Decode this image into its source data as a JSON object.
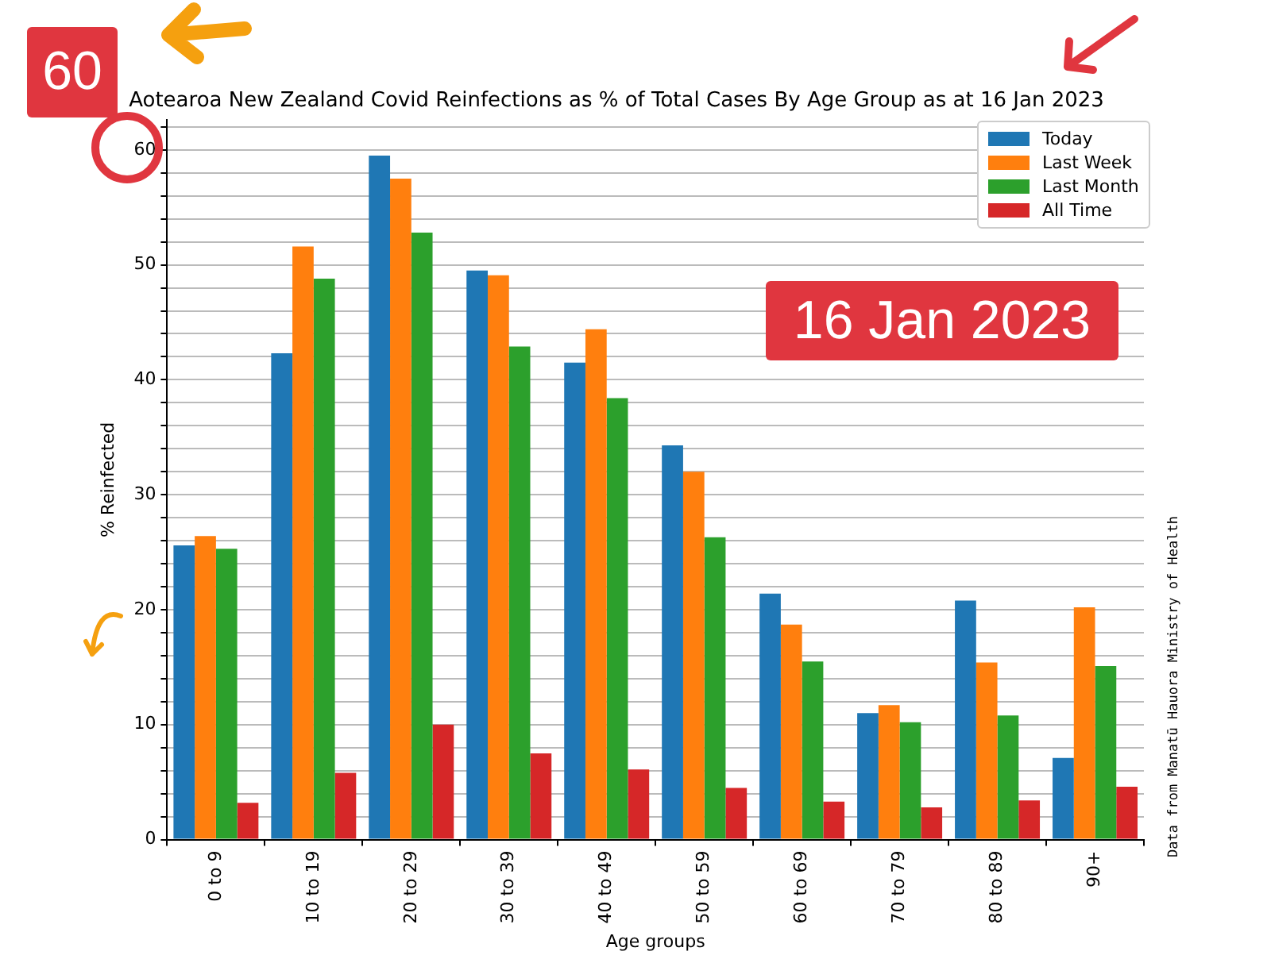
{
  "chart_data": {
    "type": "bar",
    "title": "Aotearoa New Zealand Covid Reinfections as % of Total Cases By Age Group as at 16 Jan 2023",
    "xlabel": "Age groups",
    "ylabel": "% Reinfected",
    "categories": [
      "0 to 9",
      "10 to 19",
      "20 to 29",
      "30 to 39",
      "40 to 49",
      "50 to 59",
      "60 to 69",
      "70 to 79",
      "80 to 89",
      "90+"
    ],
    "series": [
      {
        "name": "Today",
        "color": "#1f77b4",
        "values": [
          25.6,
          42.3,
          59.5,
          49.5,
          41.5,
          34.3,
          21.4,
          11.0,
          20.8,
          7.1
        ]
      },
      {
        "name": "Last Week",
        "color": "#ff7f0e",
        "values": [
          26.4,
          51.6,
          57.5,
          49.1,
          44.4,
          32.0,
          18.7,
          11.7,
          15.4,
          20.2
        ]
      },
      {
        "name": "Last Month",
        "color": "#2ca02c",
        "values": [
          25.3,
          48.8,
          52.8,
          42.9,
          38.4,
          26.3,
          15.5,
          10.2,
          10.8,
          15.1
        ]
      },
      {
        "name": "All Time",
        "color": "#d62728",
        "values": [
          3.2,
          5.8,
          10.0,
          7.5,
          6.1,
          4.5,
          3.3,
          2.8,
          3.4,
          4.6
        ]
      }
    ],
    "ylim": [
      0,
      62.6
    ],
    "yticks": [
      0,
      {
        "value": 2,
        "label": null
      },
      {
        "value": 4,
        "label": null
      },
      {
        "value": 6,
        "label": null
      },
      {
        "value": 8,
        "label": null
      },
      10,
      {
        "value": 12,
        "label": null
      },
      {
        "value": 14,
        "label": null
      },
      {
        "value": 16,
        "label": null
      },
      {
        "value": 18,
        "label": null
      },
      20,
      {
        "value": 22,
        "label": null
      },
      {
        "value": 24,
        "label": null
      },
      {
        "value": 26,
        "label": null
      },
      {
        "value": 28,
        "label": null
      },
      30,
      {
        "value": 32,
        "label": null
      },
      {
        "value": 34,
        "label": null
      },
      {
        "value": 36,
        "label": null
      },
      {
        "value": 38,
        "label": null
      },
      40,
      {
        "value": 42,
        "label": null
      },
      {
        "value": 44,
        "label": null
      },
      {
        "value": 46,
        "label": null
      },
      {
        "value": 48,
        "label": null
      },
      50,
      {
        "value": 52,
        "label": null
      },
      {
        "value": 54,
        "label": null
      },
      {
        "value": 56,
        "label": null
      },
      {
        "value": 58,
        "label": null
      },
      60,
      {
        "value": 62,
        "label": null
      }
    ],
    "grid": "y",
    "legend": "top right",
    "annotations": [
      "60",
      "16 Jan 2023",
      "Data from Manatū Hauora Ministry of Health"
    ]
  }
}
